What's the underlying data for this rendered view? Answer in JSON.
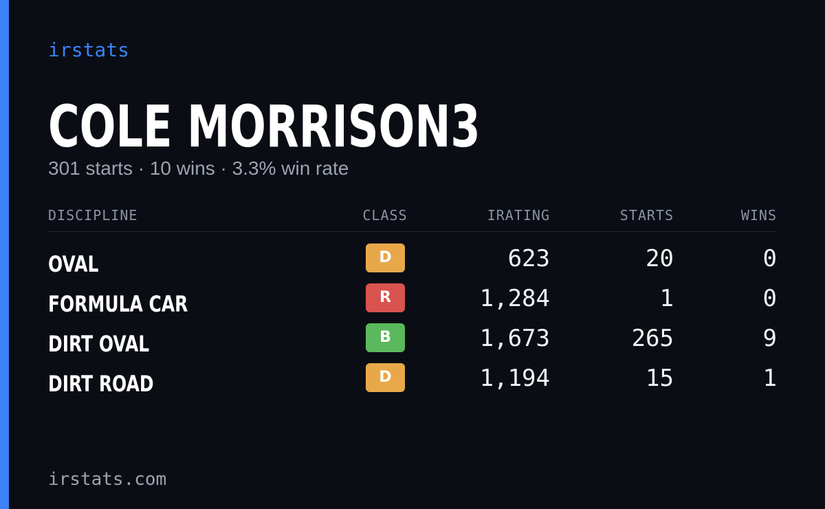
{
  "brand": "irstats",
  "player": {
    "name": "COLE MORRISON3",
    "summary": "301 starts · 10 wins · 3.3% win rate"
  },
  "table": {
    "headers": {
      "discipline": "DISCIPLINE",
      "class": "CLASS",
      "irating": "IRATING",
      "starts": "STARTS",
      "wins": "WINS"
    },
    "rows": [
      {
        "discipline": "OVAL",
        "class": "D",
        "class_color": "#e8a84a",
        "irating": "623",
        "starts": "20",
        "wins": "0"
      },
      {
        "discipline": "FORMULA CAR",
        "class": "R",
        "class_color": "#d9534f",
        "irating": "1,284",
        "starts": "1",
        "wins": "0"
      },
      {
        "discipline": "DIRT OVAL",
        "class": "B",
        "class_color": "#5cb85c",
        "irating": "1,673",
        "starts": "265",
        "wins": "9"
      },
      {
        "discipline": "DIRT ROAD",
        "class": "D",
        "class_color": "#e8a84a",
        "irating": "1,194",
        "starts": "15",
        "wins": "1"
      }
    ]
  },
  "footer": "irstats.com",
  "colors": {
    "background": "#0a0d14",
    "accent": "#3b82f6"
  }
}
